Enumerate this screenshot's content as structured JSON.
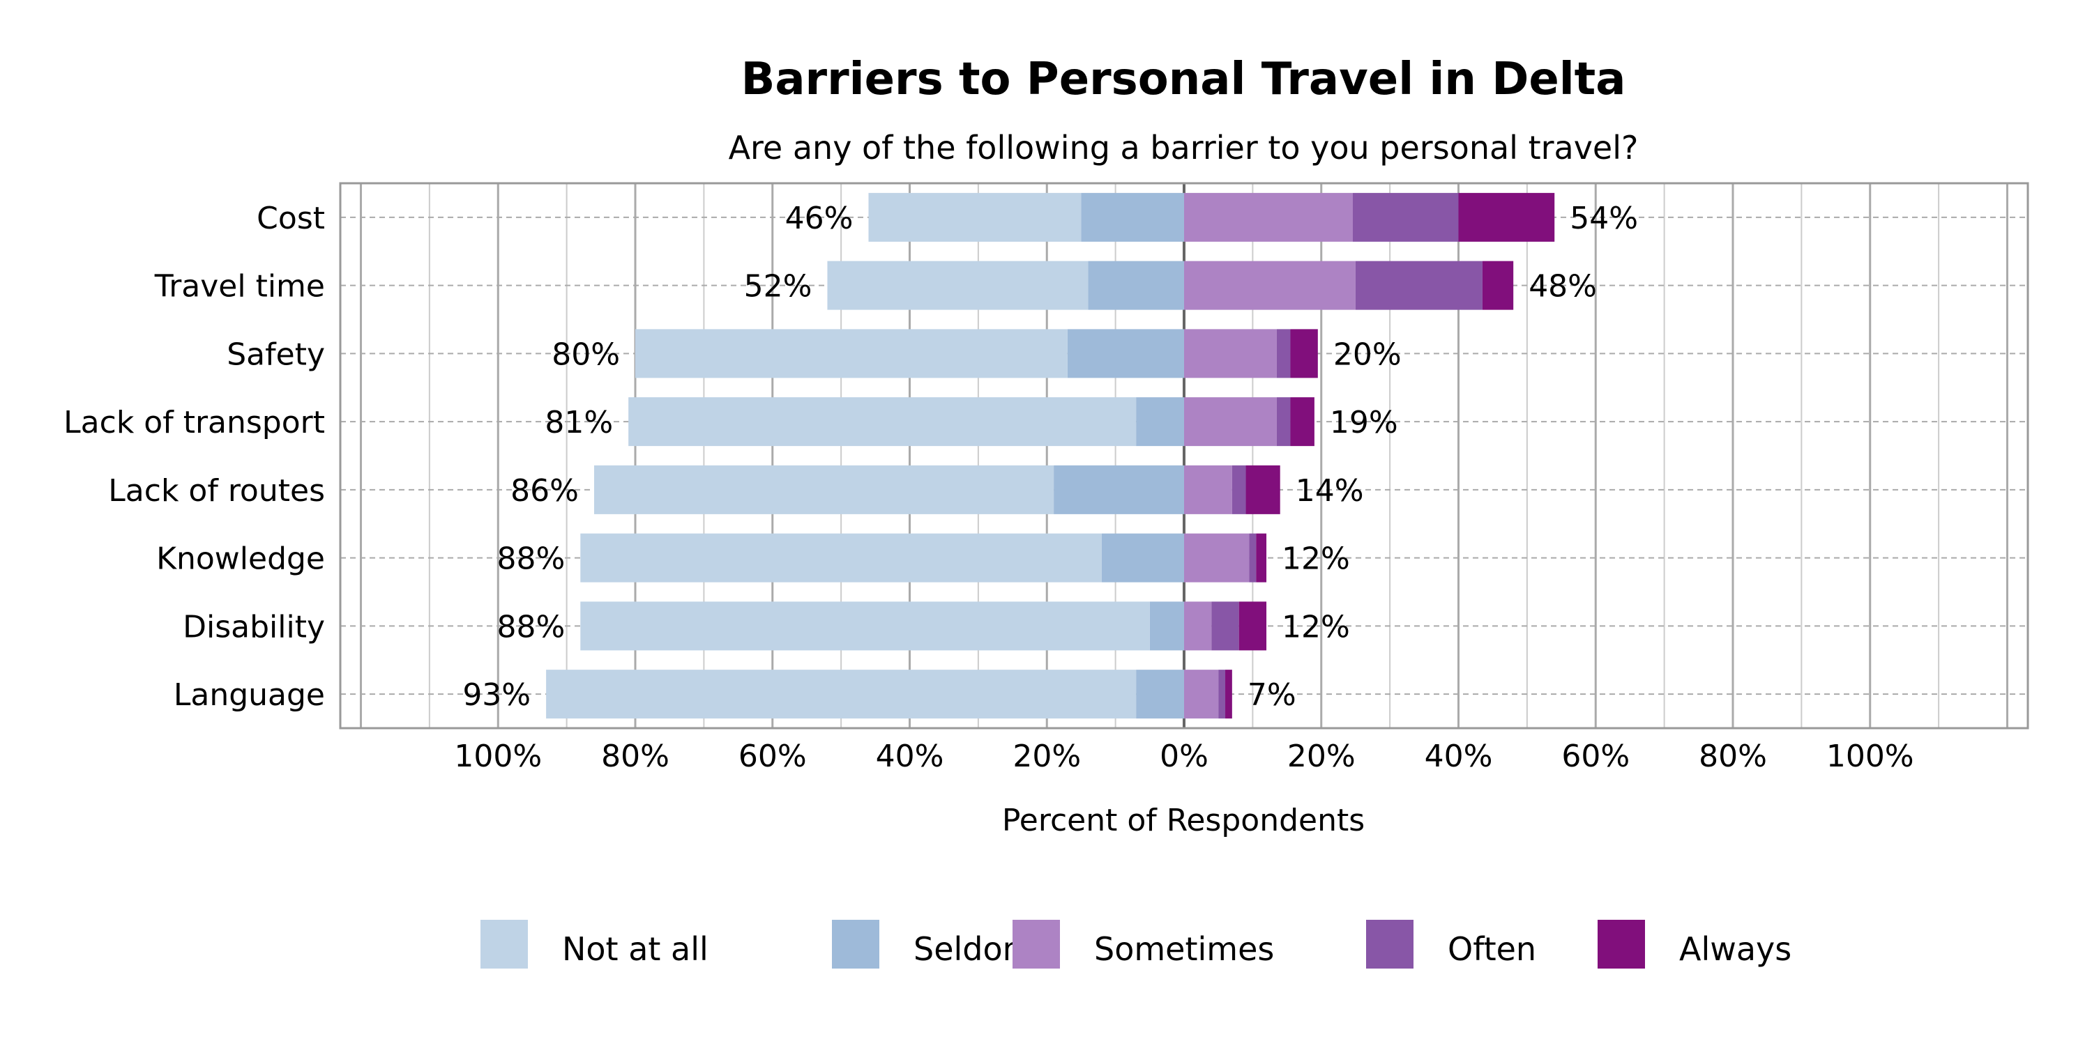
{
  "chart_data": {
    "type": "bar",
    "orientation": "horizontal",
    "stacked": "diverging",
    "title": "Barriers to Personal Travel in Delta",
    "subtitle": "Are any of the following a barrier to you personal travel?",
    "xlabel": "Percent of Respondents",
    "xlim": [
      -123,
      123
    ],
    "xticks": [
      -100,
      -80,
      -60,
      -40,
      -20,
      0,
      20,
      40,
      60,
      80,
      100
    ],
    "xtick_labels": [
      "100%",
      "80%",
      "60%",
      "40%",
      "20%",
      "0%",
      "20%",
      "40%",
      "60%",
      "80%",
      "100%"
    ],
    "grid": true,
    "legend_position": "bottom",
    "categories": [
      "Cost",
      "Travel time",
      "Safety",
      "Lack of transport",
      "Lack of routes",
      "Knowledge",
      "Disability",
      "Language"
    ],
    "series": [
      {
        "name": "Not at all",
        "side": "negative",
        "color": "#bfd3e6",
        "values": [
          31,
          38,
          63,
          74,
          67,
          76,
          83,
          86
        ]
      },
      {
        "name": "Seldom",
        "side": "negative",
        "color": "#9ebad9",
        "values": [
          15,
          14,
          17,
          7,
          19,
          12,
          5,
          7
        ]
      },
      {
        "name": "Sometimes",
        "side": "positive",
        "color": "#ad83c4",
        "values": [
          24.6,
          25,
          13.5,
          13.5,
          7,
          9.5,
          4,
          5
        ]
      },
      {
        "name": "Often",
        "side": "positive",
        "color": "#8856a7",
        "values": [
          15.4,
          18.5,
          2,
          2,
          2,
          1,
          4,
          1
        ]
      },
      {
        "name": "Always",
        "side": "positive",
        "color": "#810f7c",
        "values": [
          14,
          4.5,
          4,
          3.5,
          5,
          1.5,
          4,
          1
        ]
      }
    ],
    "negative_labels": [
      "46%",
      "52%",
      "80%",
      "81%",
      "86%",
      "88%",
      "88%",
      "93%"
    ],
    "positive_labels": [
      "54%",
      "48%",
      "20%",
      "19%",
      "14%",
      "12%",
      "12%",
      "7%"
    ]
  }
}
